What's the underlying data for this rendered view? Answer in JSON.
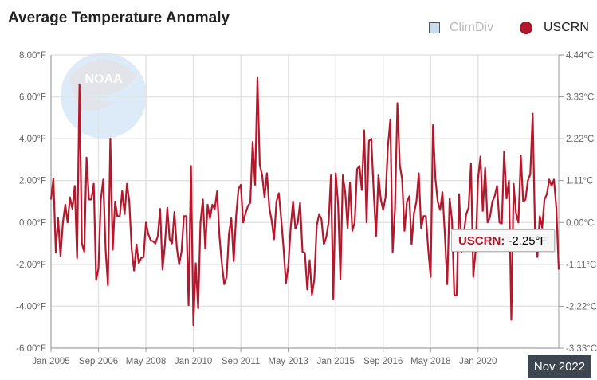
{
  "chart_data": {
    "type": "line",
    "title": "Average Temperature Anomaly",
    "legend": {
      "placement": "top-right",
      "items": [
        {
          "name": "ClimDiv",
          "color": "#c7dcef",
          "visible": false
        },
        {
          "name": "USCRN",
          "color": "#b5182d",
          "visible": true
        }
      ]
    },
    "x_tick_labels": [
      "Jan 2005",
      "Sep 2006",
      "May 2008",
      "Jan 2010",
      "Sep 2011",
      "May 2013",
      "Jan 2015",
      "Sep 2016",
      "May 2018",
      "Jan 2020"
    ],
    "x_range": [
      "Jan 2005",
      "Nov 2022"
    ],
    "x_interval": "monthly",
    "y_left_ticks": [
      "8.00°F",
      "6.00°F",
      "4.00°F",
      "2.00°F",
      "0.00°F",
      "-2.00°F",
      "-4.00°F",
      "-6.00°F"
    ],
    "y_right_ticks": [
      "4.44°C",
      "3.33°C",
      "2.22°C",
      "1.11°C",
      "0.00°C",
      "-1.11°C",
      "-2.22°C",
      "-3.33°C"
    ],
    "ylim": [
      -6,
      8
    ],
    "grid": true,
    "series": [
      {
        "name": "USCRN",
        "color": "#b5182d",
        "values": [
          1.1,
          2.1,
          -1.4,
          0.2,
          -1.6,
          0,
          0.85,
          0,
          1.2,
          0.65,
          1.75,
          -1.7,
          6.6,
          -1.0,
          -1.4,
          3.1,
          1.1,
          1.1,
          1.85,
          -2.75,
          -2.2,
          1.1,
          2.05,
          -1.3,
          -3.0,
          4.0,
          -1.3,
          1.0,
          0.3,
          0.3,
          1.5,
          0.4,
          1.85,
          1.0,
          -1.3,
          -2.3,
          -1.05,
          -1.95,
          -1.7,
          -1.65,
          0,
          -0.55,
          -0.85,
          -0.9,
          -1.0,
          -0.65,
          0.65,
          -2.25,
          -1.05,
          0.7,
          -0.8,
          -1.0,
          0.5,
          -1.2,
          -2.0,
          -1.4,
          0.3,
          0.3,
          -3.95,
          2.7,
          -4.9,
          -1.95,
          -4.1,
          0,
          1.1,
          -1.25,
          0.85,
          0.2,
          0.85,
          0.65,
          1.5,
          -0.65,
          -1.95,
          -2.95,
          -2.6,
          -0.55,
          0.2,
          -1.85,
          0.3,
          1.6,
          1.8,
          0,
          0.45,
          0.8,
          0.95,
          3.85,
          1.8,
          6.9,
          2.75,
          2.25,
          1.2,
          2.35,
          0.7,
          0.1,
          -0.8,
          1.0,
          1.4,
          0.2,
          -1.2,
          -2.9,
          -2.1,
          -0.3,
          1.0,
          -0.3,
          0,
          0.95,
          -1.4,
          -1.45,
          -3.2,
          -1.8,
          -3.45,
          -2.7,
          -0.15,
          0.4,
          0.15,
          -1.05,
          -0.7,
          0,
          2.25,
          -3.65,
          2.35,
          0.85,
          -2.7,
          2.25,
          1.45,
          -0.25,
          1.9,
          -0.4,
          0,
          2.55,
          2.7,
          1.55,
          4.4,
          0,
          3.9,
          4.0,
          1.5,
          -0.65,
          2.25,
          1.1,
          0.6,
          1.2,
          3.65,
          4.9,
          -1.4,
          0.7,
          5.7,
          2.75,
          2.05,
          -0.4,
          1.0,
          1.25,
          -1.05,
          0.45,
          1.0,
          2.35,
          -0.3,
          0.3,
          0.3,
          -1.3,
          -2.6,
          4.65,
          2.1,
          1.0,
          0.6,
          1.45,
          -0.55,
          -2.95,
          1.15,
          0.1,
          -3.5,
          -3.45,
          1.35,
          -1.4,
          -0.55,
          0.4,
          0.7,
          2.8,
          -2.6,
          -1.3,
          2.1,
          3.15,
          0.55,
          2.6,
          0,
          0.25,
          1.0,
          1.25,
          1.75,
          0,
          -0.05,
          3.4,
          1.15,
          2.0,
          -4.65,
          1.85,
          0.45,
          0,
          3.2,
          1.0,
          1.1,
          2.0,
          2.3,
          5.2,
          -0.3,
          -1.65,
          0.3,
          -0.25,
          1.1,
          1.35,
          2.05,
          1.75,
          2.05,
          0.7,
          -2.25
        ]
      }
    ],
    "tooltip": {
      "series": "USCRN:",
      "value": "-2.25°F",
      "x_label": "Nov 2022"
    },
    "watermark": "NOAA"
  }
}
